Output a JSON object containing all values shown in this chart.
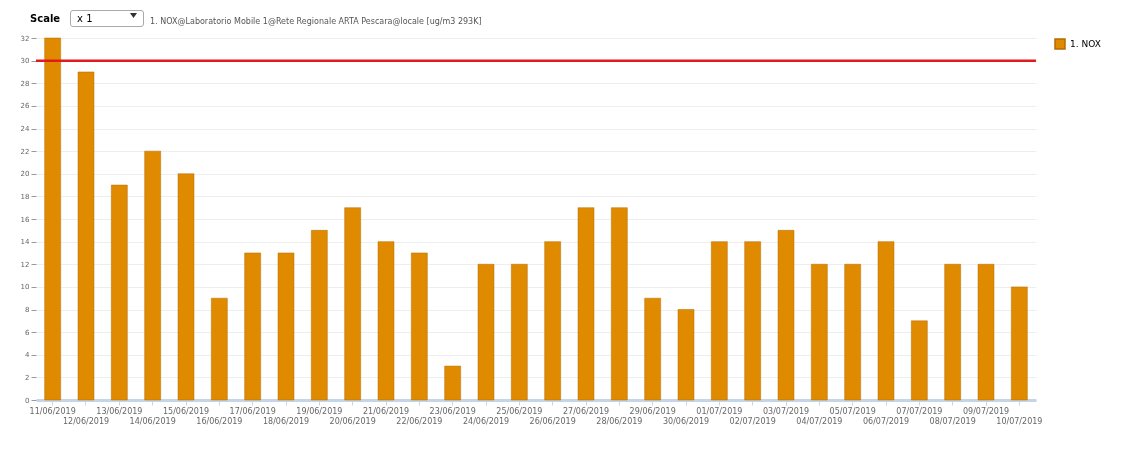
{
  "chart_data": {
    "type": "bar",
    "title": "1. NOX@Laboratorio Mobile 1@Rete Regionale ARTA Pescara@locale [ug/m3 293K]",
    "annotations": [
      "Scale",
      "x 1"
    ],
    "categories": [
      "11/06/2019",
      "12/06/2019",
      "13/06/2019",
      "14/06/2019",
      "15/06/2019",
      "16/06/2019",
      "17/06/2019",
      "18/06/2019",
      "19/06/2019",
      "20/06/2019",
      "21/06/2019",
      "22/06/2019",
      "23/06/2019",
      "24/06/2019",
      "25/06/2019",
      "26/06/2019",
      "27/06/2019",
      "28/06/2019",
      "29/06/2019",
      "30/06/2019",
      "01/07/2019",
      "02/07/2019",
      "03/07/2019",
      "04/07/2019",
      "05/07/2019",
      "06/07/2019",
      "07/07/2019",
      "08/07/2019",
      "09/07/2019",
      "10/07/2019"
    ],
    "series": [
      {
        "name": "1. NOX",
        "color": "#e08a00",
        "values": [
          32,
          29,
          19,
          22,
          20,
          9,
          13,
          13,
          15,
          17,
          14,
          13,
          3,
          12,
          12,
          14,
          17,
          17,
          9,
          8,
          14,
          14,
          15,
          12,
          12,
          14,
          7,
          12,
          12,
          10
        ]
      }
    ],
    "ylim": [
      0,
      32
    ],
    "yticks": [
      0,
      2,
      4,
      6,
      8,
      10,
      12,
      14,
      16,
      18,
      20,
      22,
      24,
      26,
      28,
      30,
      32
    ],
    "grid": "y",
    "legend": "top right",
    "ref_lines": [
      {
        "axis": "y",
        "value": 30,
        "color": "#e31a1c"
      }
    ]
  }
}
